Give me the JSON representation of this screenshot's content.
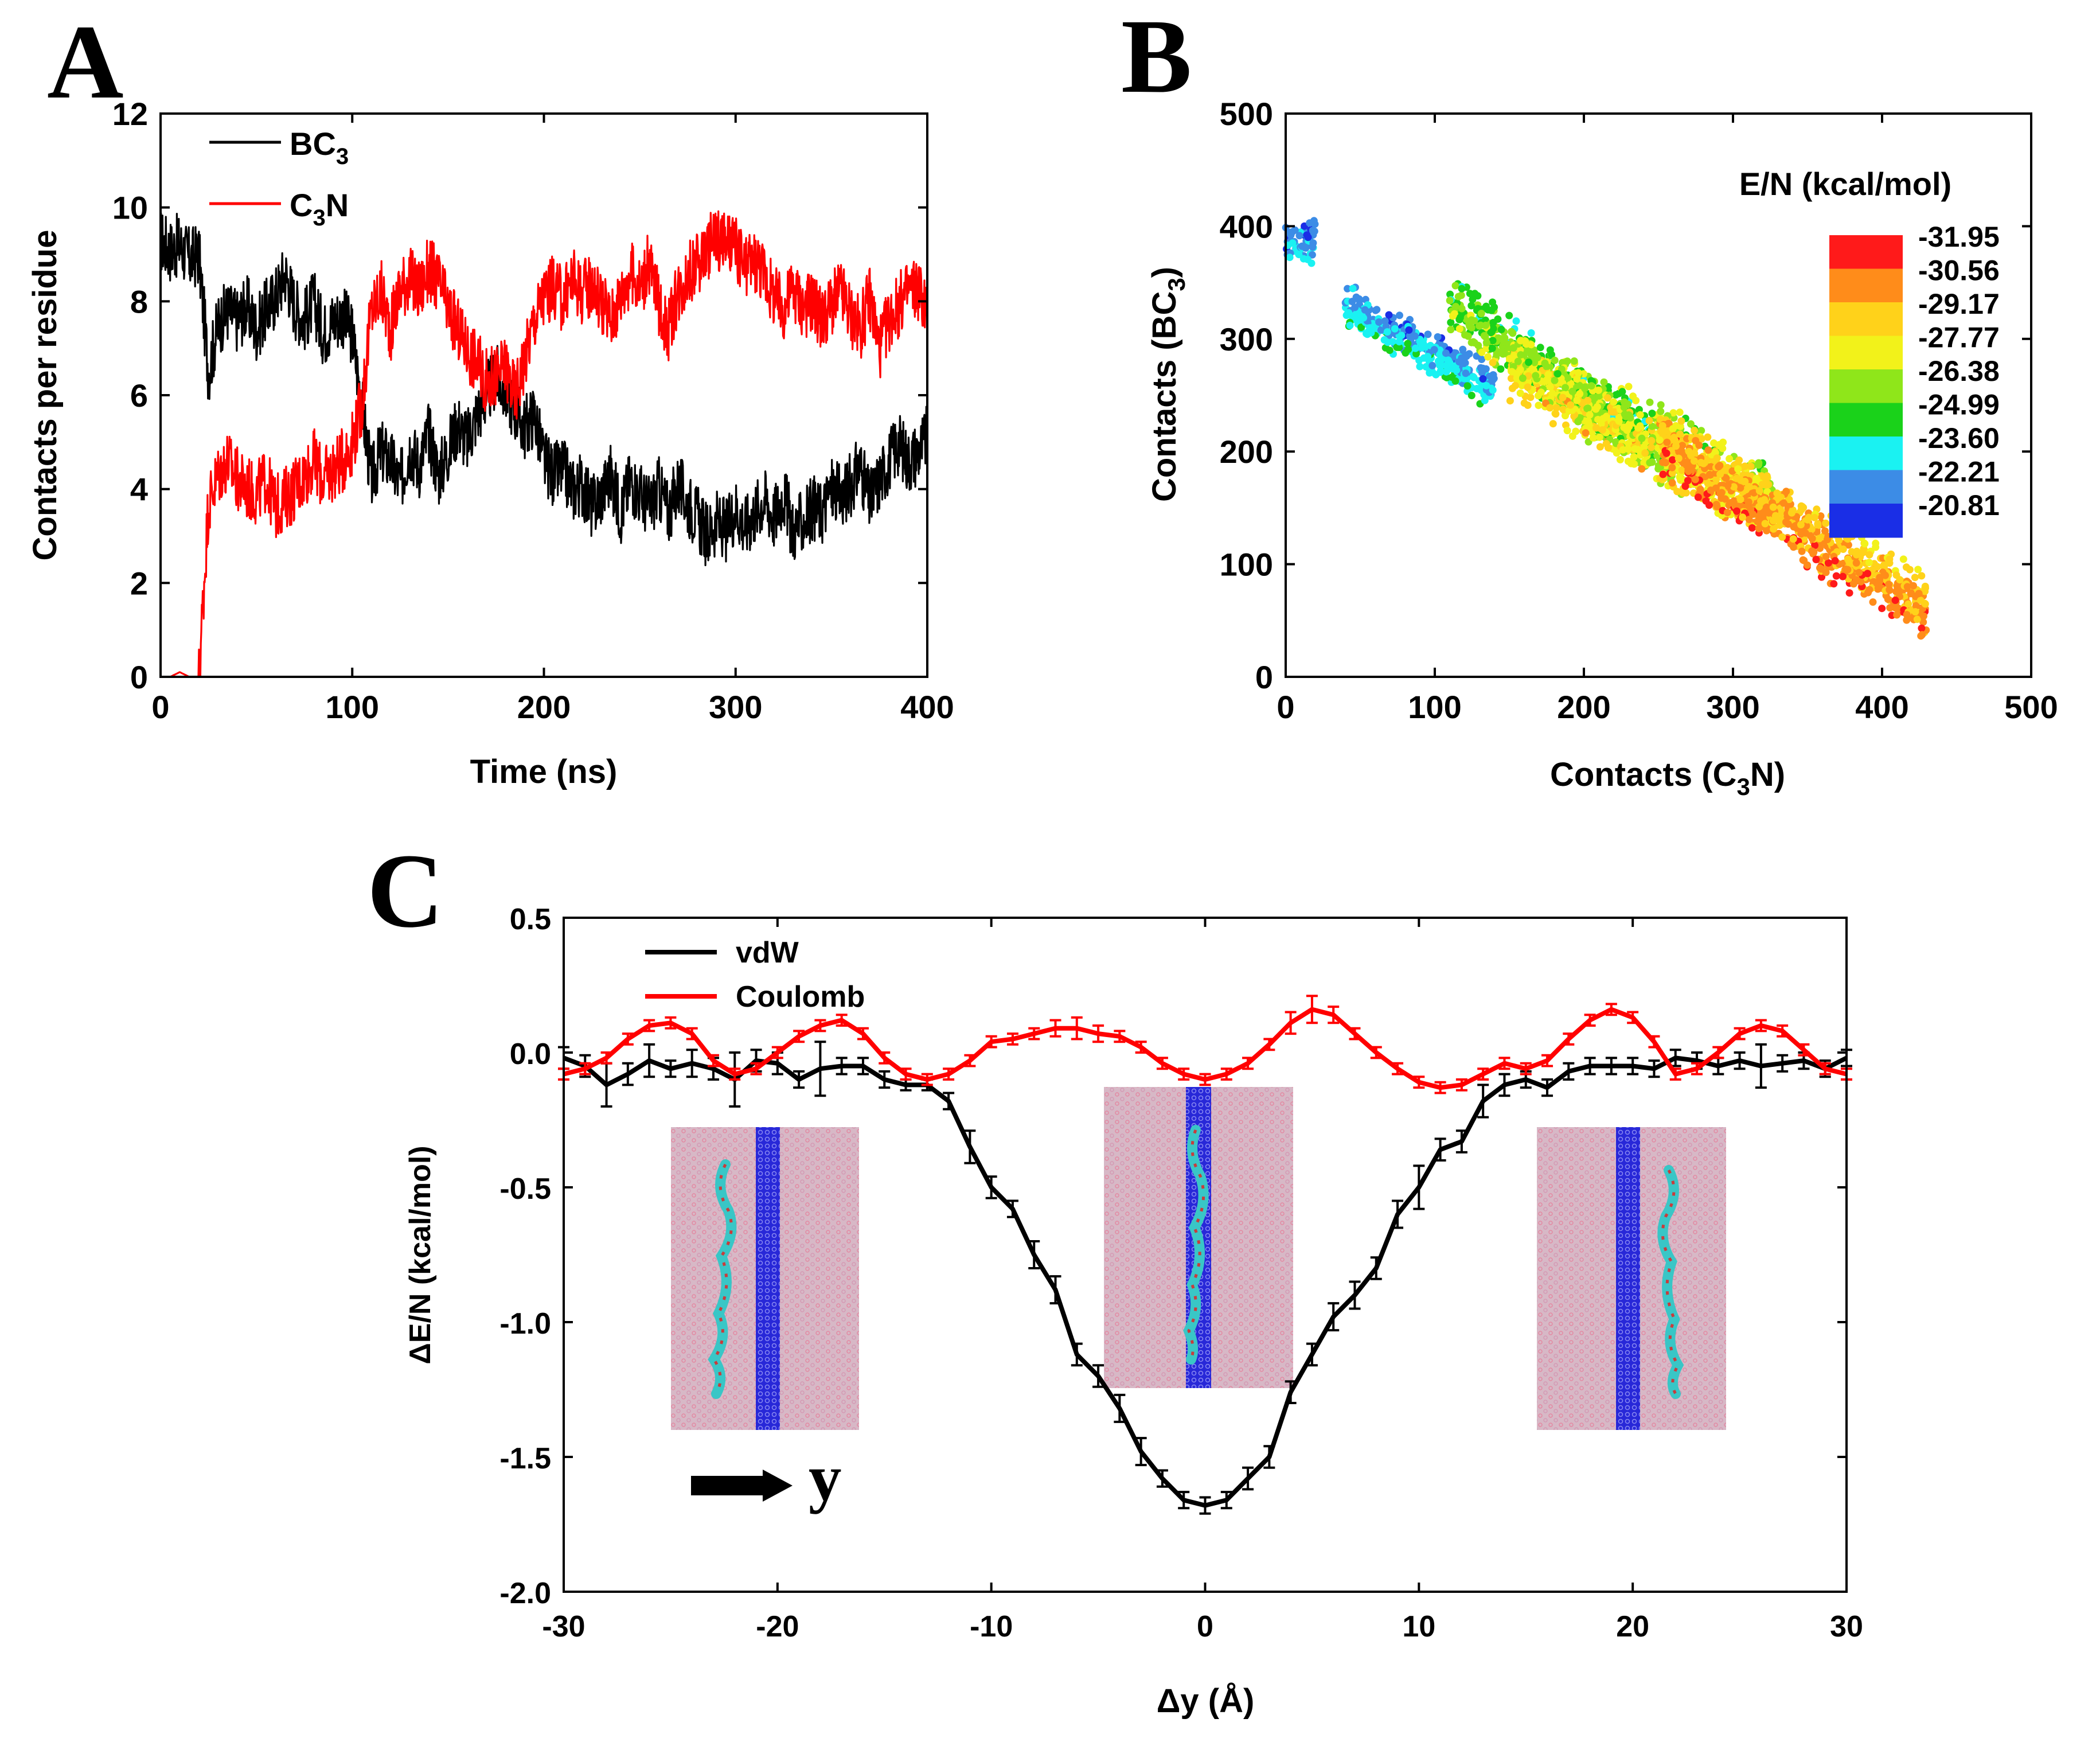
{
  "chart_data": [
    {
      "panel": "A",
      "type": "line",
      "title": "",
      "xlabel": "Time (ns)",
      "ylabel": "Contacts per residue",
      "xlim": [
        0,
        400
      ],
      "ylim": [
        0,
        12
      ],
      "xticks": [
        "0",
        "100",
        "200",
        "300",
        "400"
      ],
      "yticks": [
        "0",
        "2",
        "4",
        "6",
        "8",
        "10",
        "12"
      ],
      "legend_position": "top-left",
      "series": [
        {
          "name": "BC3",
          "label_main": "BC",
          "label_sub": "3",
          "color": "#000000",
          "x": [
            0,
            5,
            10,
            15,
            20,
            25,
            30,
            35,
            40,
            45,
            50,
            55,
            60,
            65,
            70,
            75,
            80,
            85,
            90,
            95,
            100,
            105,
            110,
            115,
            120,
            125,
            130,
            135,
            140,
            145,
            150,
            155,
            160,
            165,
            170,
            175,
            180,
            185,
            190,
            195,
            200,
            205,
            210,
            215,
            220,
            225,
            230,
            235,
            240,
            245,
            250,
            255,
            260,
            265,
            270,
            275,
            280,
            285,
            290,
            295,
            300,
            305,
            310,
            315,
            320,
            325,
            330,
            335,
            340,
            345,
            350,
            355,
            360,
            365,
            370,
            375,
            380,
            385,
            390,
            395,
            400
          ],
          "values": [
            9.3,
            9.1,
            9.2,
            8.9,
            9.0,
            6.5,
            7.5,
            7.8,
            7.6,
            7.9,
            7.4,
            7.8,
            8.1,
            8.6,
            7.9,
            7.6,
            8.0,
            7.3,
            7.6,
            7.7,
            7.3,
            5.8,
            4.2,
            4.8,
            4.6,
            4.1,
            4.9,
            4.5,
            5.2,
            4.3,
            4.8,
            5.4,
            5.0,
            5.6,
            6.0,
            6.4,
            6.1,
            5.7,
            5.3,
            5.6,
            4.6,
            4.3,
            4.4,
            4.0,
            4.1,
            3.6,
            3.9,
            4.3,
            3.5,
            4.2,
            3.9,
            3.6,
            4.0,
            3.5,
            4.1,
            3.7,
            3.4,
            3.0,
            3.3,
            3.1,
            3.6,
            3.2,
            3.5,
            3.8,
            3.4,
            3.9,
            3.1,
            3.3,
            3.6,
            3.5,
            4.0,
            3.8,
            4.1,
            4.5,
            3.7,
            4.2,
            4.6,
            5.0,
            4.6,
            4.8,
            5.1
          ]
        },
        {
          "name": "C3N",
          "label_main": "C",
          "label_sub": "3",
          "label_after": "N",
          "color": "#ff0000",
          "x": [
            0,
            5,
            10,
            15,
            20,
            25,
            30,
            35,
            40,
            45,
            50,
            55,
            60,
            65,
            70,
            75,
            80,
            85,
            90,
            95,
            100,
            105,
            110,
            115,
            120,
            125,
            130,
            135,
            140,
            145,
            150,
            155,
            160,
            165,
            170,
            175,
            180,
            185,
            190,
            195,
            200,
            205,
            210,
            215,
            220,
            225,
            230,
            235,
            240,
            245,
            250,
            255,
            260,
            265,
            270,
            275,
            280,
            285,
            290,
            295,
            300,
            305,
            310,
            315,
            320,
            325,
            330,
            335,
            340,
            345,
            350,
            355,
            360,
            365,
            370,
            375,
            380,
            385,
            390,
            395,
            400
          ],
          "values": [
            0,
            0,
            0.1,
            0,
            0,
            3.7,
            4.3,
            4.6,
            4.2,
            4.0,
            3.9,
            4.2,
            3.6,
            3.8,
            4.0,
            4.3,
            4.6,
            4.2,
            4.4,
            4.6,
            5.0,
            5.8,
            7.8,
            8.2,
            7.4,
            8.3,
            8.5,
            8.2,
            8.7,
            8.4,
            7.8,
            7.4,
            7.0,
            6.7,
            6.3,
            6.4,
            6.6,
            6.0,
            6.8,
            7.6,
            8.1,
            8.3,
            8.0,
            8.5,
            8.2,
            8.4,
            8.0,
            7.6,
            8.1,
            8.6,
            8.3,
            8.8,
            7.9,
            7.4,
            8.2,
            8.6,
            8.8,
            9.1,
            9.4,
            9.2,
            9.1,
            8.7,
            8.9,
            8.6,
            8.1,
            7.8,
            8.3,
            7.9,
            8.0,
            7.6,
            7.9,
            8.2,
            7.7,
            7.4,
            8.1,
            7.0,
            7.6,
            7.9,
            8.2,
            8.3,
            7.8
          ]
        }
      ]
    },
    {
      "panel": "B",
      "type": "scatter",
      "title": "",
      "xlabel": "Contacts (C3N)",
      "xlabel_parts": [
        "Contacts (C",
        "3",
        "N)"
      ],
      "ylabel": "Contacts (BC3)",
      "ylabel_parts": [
        "Contacts (BC",
        "3",
        ")"
      ],
      "xlim": [
        0,
        500
      ],
      "ylim": [
        0,
        500
      ],
      "xticks": [
        "0",
        "100",
        "200",
        "300",
        "400",
        "500"
      ],
      "yticks": [
        "0",
        "100",
        "200",
        "300",
        "400",
        "500"
      ],
      "colorbar": {
        "title": "E/N (kcal/mol)",
        "labels": [
          "-31.95",
          "-30.56",
          "-29.17",
          "-27.77",
          "-26.38",
          "-24.99",
          "-23.60",
          "-22.21",
          "-20.81"
        ],
        "colors": [
          "#ff1a1a",
          "#ff8c1a",
          "#ffd21a",
          "#f2f21a",
          "#8fe61a",
          "#1ad21a",
          "#1af2f2",
          "#3c8ce6",
          "#1a2ee6"
        ]
      },
      "clusters": [
        {
          "x_range": [
            0,
            20
          ],
          "y_center": 385,
          "y_spread": 25,
          "energy_range": [
            -24,
            -21
          ],
          "n": 60
        },
        {
          "x_range": [
            40,
            140
          ],
          "y_line": [
            330,
            255
          ],
          "y_spread": 22,
          "energy_range": [
            -24.5,
            -21.5
          ],
          "n": 320
        },
        {
          "x_range": [
            110,
            260
          ],
          "y_line": [
            330,
            190
          ],
          "y_spread": 30,
          "energy_range": [
            -28,
            -24
          ],
          "n": 520
        },
        {
          "x_range": [
            150,
            330
          ],
          "y_line": [
            280,
            150
          ],
          "y_spread": 38,
          "energy_range": [
            -30,
            -25.5
          ],
          "n": 700
        },
        {
          "x_range": [
            250,
            430
          ],
          "y_line": [
            210,
            60
          ],
          "y_spread": 32,
          "energy_range": [
            -31.95,
            -28
          ],
          "n": 760
        }
      ]
    },
    {
      "panel": "C",
      "type": "line",
      "title": "",
      "xlabel": "Δy (Å)",
      "ylabel": "ΔE/N (kcal/mol)",
      "xlim": [
        -30,
        30
      ],
      "ylim": [
        -2.0,
        0.5
      ],
      "xticks": [
        "-30",
        "-20",
        "-10",
        "0",
        "10",
        "20",
        "30"
      ],
      "yticks": [
        "-2.0",
        "-1.5",
        "-1.0",
        "-0.5",
        "0.0",
        "0.5"
      ],
      "legend_position": "top-left",
      "arrow_label": "y",
      "series": [
        {
          "name": "vdW",
          "color": "#000000",
          "x": [
            -30,
            -29,
            -28,
            -27,
            -26,
            -25,
            -24,
            -23,
            -22,
            -21,
            -20,
            -19,
            -18,
            -17,
            -16,
            -15,
            -14,
            -13,
            -12,
            -11,
            -10,
            -9,
            -8,
            -7,
            -6,
            -5,
            -4,
            -3,
            -2,
            -1,
            0,
            1,
            2,
            3,
            4,
            5,
            6,
            7,
            8,
            9,
            10,
            11,
            12,
            13,
            14,
            15,
            16,
            17,
            18,
            19,
            20,
            21,
            22,
            23,
            24,
            25,
            26,
            27,
            28,
            29,
            30
          ],
          "values": [
            -0.02,
            -0.05,
            -0.12,
            -0.08,
            -0.03,
            -0.06,
            -0.04,
            -0.06,
            -0.1,
            -0.03,
            -0.04,
            -0.1,
            -0.06,
            -0.05,
            -0.05,
            -0.1,
            -0.12,
            -0.12,
            -0.18,
            -0.35,
            -0.5,
            -0.58,
            -0.75,
            -0.88,
            -1.12,
            -1.2,
            -1.32,
            -1.48,
            -1.58,
            -1.66,
            -1.68,
            -1.66,
            -1.58,
            -1.5,
            -1.26,
            -1.12,
            -0.98,
            -0.9,
            -0.8,
            -0.6,
            -0.5,
            -0.36,
            -0.33,
            -0.18,
            -0.12,
            -0.1,
            -0.13,
            -0.07,
            -0.05,
            -0.05,
            -0.05,
            -0.06,
            -0.02,
            -0.03,
            -0.05,
            -0.03,
            -0.05,
            -0.04,
            -0.03,
            -0.06,
            -0.02
          ],
          "errors": [
            0.04,
            0.04,
            0.08,
            0.04,
            0.06,
            0.03,
            0.05,
            0.04,
            0.1,
            0.04,
            0.04,
            0.03,
            0.1,
            0.03,
            0.03,
            0.03,
            0.02,
            0.02,
            0.03,
            0.06,
            0.04,
            0.03,
            0.05,
            0.05,
            0.04,
            0.04,
            0.05,
            0.05,
            0.03,
            0.03,
            0.03,
            0.03,
            0.04,
            0.04,
            0.04,
            0.04,
            0.05,
            0.05,
            0.04,
            0.05,
            0.08,
            0.04,
            0.04,
            0.06,
            0.04,
            0.03,
            0.03,
            0.03,
            0.03,
            0.03,
            0.03,
            0.03,
            0.03,
            0.03,
            0.03,
            0.03,
            0.08,
            0.03,
            0.03,
            0.03,
            0.03
          ]
        },
        {
          "name": "Coulomb",
          "color": "#ff0000",
          "x": [
            -30,
            -29,
            -28,
            -27,
            -26,
            -25,
            -24,
            -23,
            -22,
            -21,
            -20,
            -19,
            -18,
            -17,
            -16,
            -15,
            -14,
            -13,
            -12,
            -11,
            -10,
            -9,
            -8,
            -7,
            -6,
            -5,
            -4,
            -3,
            -2,
            -1,
            0,
            1,
            2,
            3,
            4,
            5,
            6,
            7,
            8,
            9,
            10,
            11,
            12,
            13,
            14,
            15,
            16,
            17,
            18,
            19,
            20,
            21,
            22,
            23,
            24,
            25,
            26,
            27,
            28,
            29,
            30
          ],
          "values": [
            -0.08,
            -0.06,
            -0.02,
            0.05,
            0.1,
            0.11,
            0.07,
            -0.03,
            -0.08,
            -0.06,
            0.0,
            0.06,
            0.1,
            0.12,
            0.07,
            -0.02,
            -0.08,
            -0.1,
            -0.08,
            -0.03,
            0.04,
            0.05,
            0.07,
            0.09,
            0.09,
            0.07,
            0.06,
            0.02,
            -0.04,
            -0.08,
            -0.1,
            -0.08,
            -0.04,
            0.03,
            0.11,
            0.16,
            0.14,
            0.07,
            0.0,
            -0.06,
            -0.11,
            -0.13,
            -0.12,
            -0.08,
            -0.04,
            -0.06,
            -0.03,
            0.05,
            0.12,
            0.16,
            0.13,
            0.04,
            -0.08,
            -0.06,
            0.0,
            0.07,
            0.1,
            0.08,
            0.01,
            -0.06,
            -0.08
          ],
          "errors": [
            0.02,
            0.02,
            0.02,
            0.02,
            0.02,
            0.02,
            0.02,
            0.02,
            0.02,
            0.02,
            0.02,
            0.02,
            0.02,
            0.02,
            0.02,
            0.02,
            0.02,
            0.02,
            0.02,
            0.02,
            0.02,
            0.02,
            0.02,
            0.03,
            0.04,
            0.03,
            0.02,
            0.02,
            0.02,
            0.02,
            0.02,
            0.02,
            0.02,
            0.02,
            0.04,
            0.05,
            0.03,
            0.02,
            0.02,
            0.02,
            0.02,
            0.02,
            0.02,
            0.02,
            0.02,
            0.02,
            0.02,
            0.02,
            0.02,
            0.02,
            0.02,
            0.02,
            0.02,
            0.02,
            0.02,
            0.02,
            0.02,
            0.02,
            0.02,
            0.02,
            0.02
          ]
        }
      ]
    }
  ]
}
